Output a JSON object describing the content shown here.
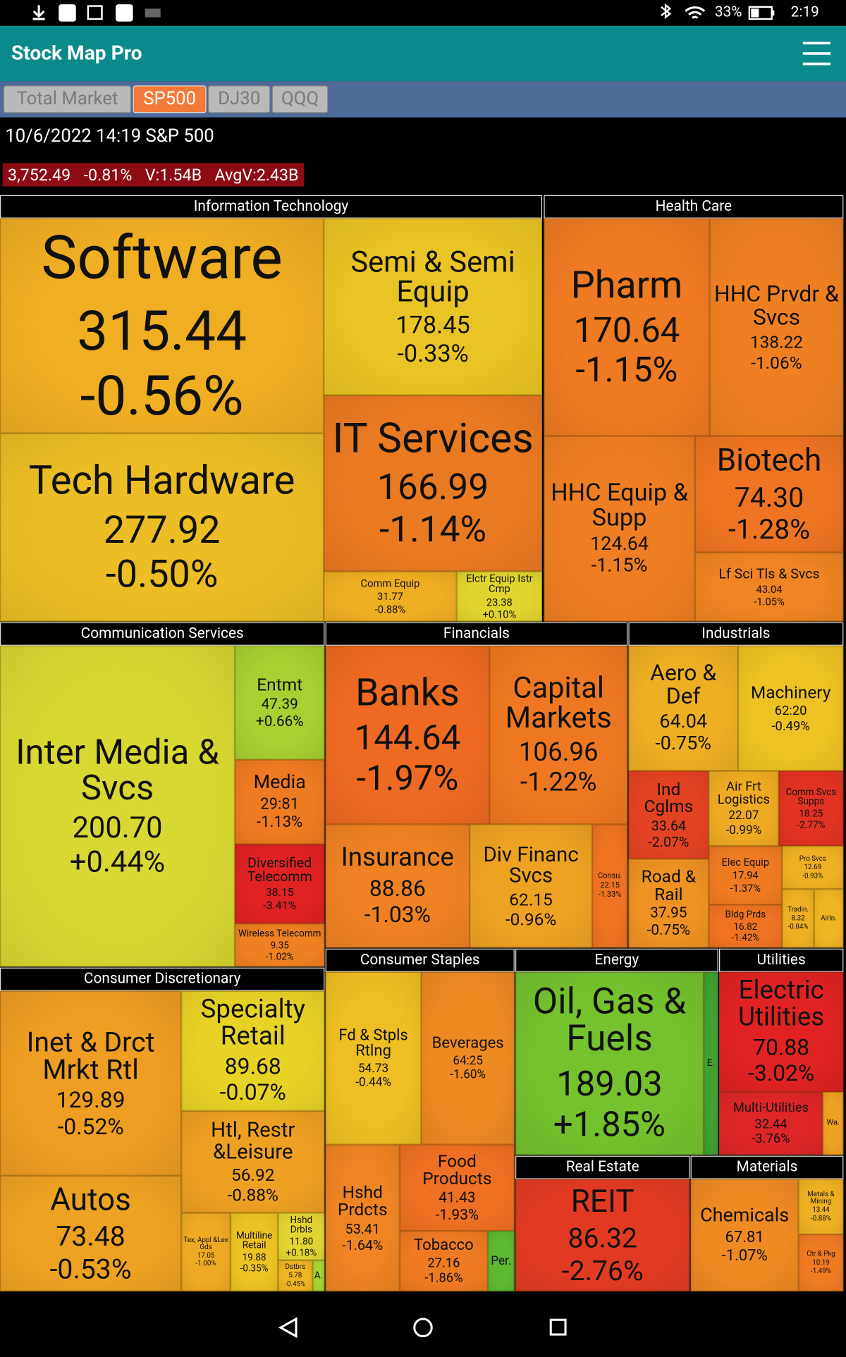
{
  "status_bar": {
    "battery": "33%",
    "time": "2:19"
  },
  "app_bar": {
    "title": "Stock Map Pro"
  },
  "tabs": [
    "Total Market",
    "SP500",
    "DJ30",
    "QQQ"
  ],
  "header": {
    "line": "10/6/2022 14:19 S&P 500",
    "stats": [
      "3,752.49",
      "-0.81%",
      "V:1.54B",
      "AvgV:2.43B"
    ]
  },
  "sectors": [
    {
      "name": "Information Technology",
      "tiles": [
        {
          "label": "Software",
          "price": "315.44",
          "change": "-0.56%",
          "color": "#f0ae22"
        },
        {
          "label": "Tech Hardware",
          "price": "277.92",
          "change": "-0.50%",
          "color": "#ecbd24"
        },
        {
          "label": "Semi & Semi Equip",
          "price": "178.45",
          "change": "-0.33%",
          "color": "#eac424"
        },
        {
          "label": "IT Services",
          "price": "166.99",
          "change": "-1.14%",
          "color": "#ea7a22"
        },
        {
          "label": "Comm Equip",
          "price": "31.77",
          "change": "-0.88%",
          "color": "#eeae22"
        },
        {
          "label": "Elctr Equip Istr Cmp",
          "price": "23.38",
          "change": "+0.10%",
          "color": "#e2d42e"
        }
      ]
    },
    {
      "name": "Health Care",
      "tiles": [
        {
          "label": "Pharm",
          "price": "170.64",
          "change": "-1.15%",
          "color": "#ee7a22"
        },
        {
          "label": "HHC Prvdr & Svcs",
          "price": "138.22",
          "change": "-1.06%",
          "color": "#ee8022"
        },
        {
          "label": "HHC Equip & Supp",
          "price": "124.64",
          "change": "-1.15%",
          "color": "#ee7e22"
        },
        {
          "label": "Biotech",
          "price": "74.30",
          "change": "-1.28%",
          "color": "#ee7422"
        },
        {
          "label": "Lf Sci Tls & Svcs",
          "price": "43.04",
          "change": "-1.05%",
          "color": "#ee8422"
        }
      ]
    },
    {
      "name": "Communication Services",
      "tiles": [
        {
          "label": "Inter Media & Svcs",
          "price": "200.70",
          "change": "+0.44%",
          "color": "#d8d832"
        },
        {
          "label": "Entmt",
          "price": "47.39",
          "change": "+0.66%",
          "color": "#a8d030"
        },
        {
          "label": "Media",
          "price": "29:81",
          "change": "-1.13%",
          "color": "#ee7a22"
        },
        {
          "label": "Diversified Telecomm",
          "price": "38.15",
          "change": "-3.41%",
          "color": "#e02222"
        },
        {
          "label": "Wireless Telecomm",
          "price": "9.35",
          "change": "-1.02%",
          "color": "#ee8022"
        }
      ]
    },
    {
      "name": "Financials",
      "tiles": [
        {
          "label": "Banks",
          "price": "144.64",
          "change": "-1.97%",
          "color": "#ee6a22"
        },
        {
          "label": "Capital Markets",
          "price": "106.96",
          "change": "-1.22%",
          "color": "#ee7822"
        },
        {
          "label": "Insurance",
          "price": "88.86",
          "change": "-1.03%",
          "color": "#ee8222"
        },
        {
          "label": "Div Financ Svcs",
          "price": "62.15",
          "change": "-0.96%",
          "color": "#eea222"
        },
        {
          "label": "Consu.",
          "price": "22.15",
          "change": "-1.33%",
          "color": "#ee7222"
        }
      ]
    },
    {
      "name": "Industrials",
      "tiles": [
        {
          "label": "Aero & Def",
          "price": "64.04",
          "change": "-0.75%",
          "color": "#eeae22"
        },
        {
          "label": "Machinery",
          "price": "62:20",
          "change": "-0.49%",
          "color": "#eec222"
        },
        {
          "label": "Ind Cglms",
          "price": "33.64",
          "change": "-2.07%",
          "color": "#e24222"
        },
        {
          "label": "Air Frt Logistics",
          "price": "22.07",
          "change": "-0.99%",
          "color": "#eeaa22"
        },
        {
          "label": "Comm Svcs Supps",
          "price": "18.25",
          "change": "-2.77%",
          "color": "#e23222"
        },
        {
          "label": "Road & Rail",
          "price": "37.95",
          "change": "-0.75%",
          "color": "#ee9222"
        },
        {
          "label": "Elec Equip",
          "price": "17.94",
          "change": "-1.37%",
          "color": "#ee7a22"
        },
        {
          "label": "Pro Svcs",
          "price": "12.69",
          "change": "-0.93%",
          "color": "#eeb022"
        },
        {
          "label": "Bldg Prds",
          "price": "16.82",
          "change": "-1.42%",
          "color": "#ee7222"
        },
        {
          "label": "Tradin.",
          "price": "8.32",
          "change": "-0.84%",
          "color": "#eeb022"
        },
        {
          "label": "Airln.",
          "color": "#eeb422"
        }
      ]
    },
    {
      "name": "Consumer Discretionary",
      "tiles": [
        {
          "label": "Inet & Drct Mrkt Rtl",
          "price": "129.89",
          "change": "-0.52%",
          "color": "#ee9e22"
        },
        {
          "label": "Autos",
          "price": "73.48",
          "change": "-0.53%",
          "color": "#eea222"
        },
        {
          "label": "Specialty Retail",
          "price": "89.68",
          "change": "-0.07%",
          "color": "#e8d226"
        },
        {
          "label": "Htl, Restr &Leisure",
          "price": "56.92",
          "change": "-0.88%",
          "color": "#eea022"
        },
        {
          "label": "Tex, Appl &Lex Gds",
          "price": "17.05",
          "change": "-1.00%",
          "color": "#eeaa22"
        },
        {
          "label": "Multiline Retail",
          "price": "19.88",
          "change": "-0.35%",
          "color": "#eec222"
        },
        {
          "label": "Hshd Drbls",
          "price": "11.80",
          "change": "+0.18%",
          "color": "#e2d430"
        },
        {
          "label": "Dstbrs",
          "price": "5.78",
          "change": "-0.45%",
          "color": "#eeb422"
        },
        {
          "label": "A.",
          "color": "#a8d030"
        }
      ]
    },
    {
      "name": "Consumer Staples",
      "tiles": [
        {
          "label": "Fd & Stpls Rtlng",
          "price": "54.73",
          "change": "-0.44%",
          "color": "#eebe22"
        },
        {
          "label": "Beverages",
          "price": "64:25",
          "change": "-1.60%",
          "color": "#ee8a22"
        },
        {
          "label": "Hshd Prdcts",
          "price": "53.41",
          "change": "-1.64%",
          "color": "#ee8422"
        },
        {
          "label": "Food Products",
          "price": "41.43",
          "change": "-1.93%",
          "color": "#ee7022"
        },
        {
          "label": "Tobacco",
          "price": "27.16",
          "change": "-1.86%",
          "color": "#ee7a22"
        },
        {
          "label": "Per.",
          "color": "#5cb830"
        }
      ]
    },
    {
      "name": "Energy",
      "tiles": [
        {
          "label": "Oil, Gas & Fuels",
          "price": "189.03",
          "change": "+1.85%",
          "color": "#74c22e"
        },
        {
          "label": "E.",
          "color": "#40a030"
        }
      ]
    },
    {
      "name": "Utilities",
      "tiles": [
        {
          "label": "Electric Utilities",
          "price": "70.88",
          "change": "-3.02%",
          "color": "#e02222"
        },
        {
          "label": "Multi-Utilities",
          "price": "32.44",
          "change": "-3.76%",
          "color": "#de2626"
        },
        {
          "label": "Wa.",
          "color": "#eea022"
        }
      ]
    },
    {
      "name": "Real Estate",
      "tiles": [
        {
          "label": "REIT",
          "price": "86.32",
          "change": "-2.76%",
          "color": "#e23a22"
        }
      ]
    },
    {
      "name": "Materials",
      "tiles": [
        {
          "label": "Chemicals",
          "price": "67.81",
          "change": "-1.07%",
          "color": "#ee8a22"
        },
        {
          "label": "Metals & Mining",
          "price": "13.44",
          "change": "-0.88%",
          "color": "#eeb022"
        },
        {
          "label": "Ctr & Pkg",
          "price": "10.19",
          "change": "-1.49%",
          "color": "#ee7a22"
        }
      ]
    }
  ]
}
